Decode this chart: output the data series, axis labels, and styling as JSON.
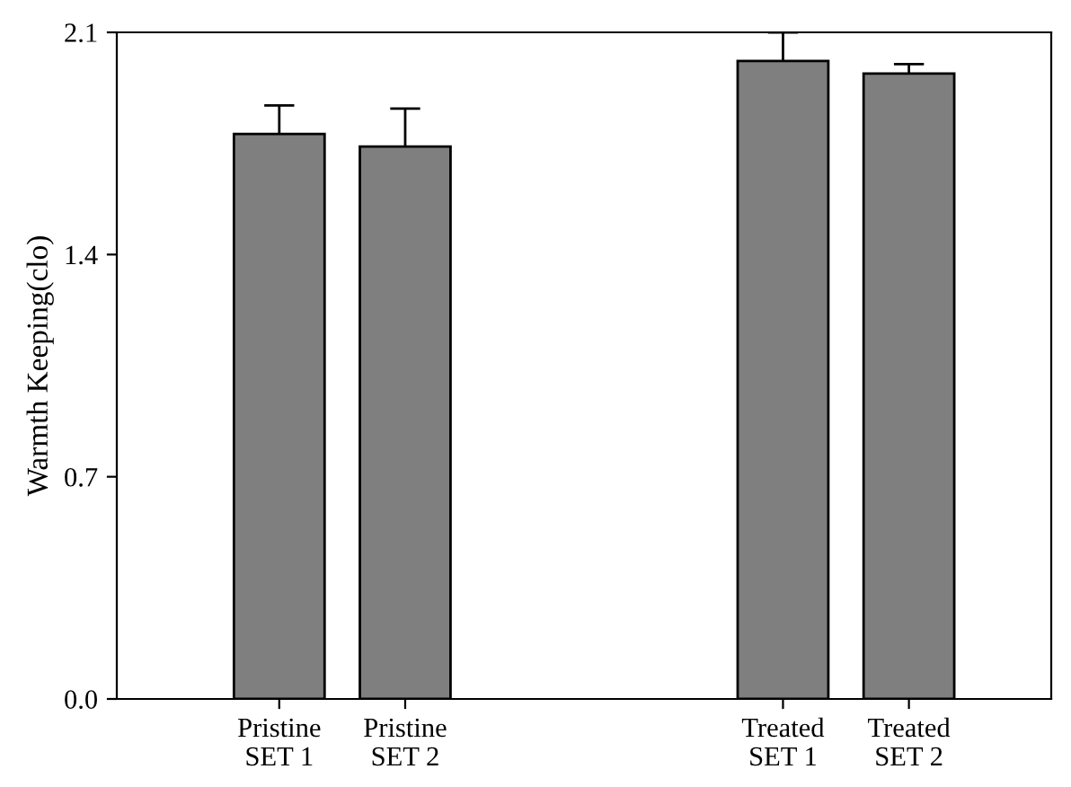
{
  "chart_data": {
    "type": "bar",
    "ylabel": "Warmth Keeping(clo)",
    "categories": [
      "Pristine\nSET 1",
      "Pristine\nSET 2",
      null,
      null,
      "Treated\nSET 1",
      "Treated\nSET 2"
    ],
    "values": [
      1.78,
      1.74,
      null,
      null,
      2.01,
      1.97
    ],
    "errors": [
      0.09,
      0.12,
      null,
      null,
      0.09,
      0.03
    ],
    "color": "#7f7f7f",
    "ylim": [
      0,
      2.1
    ],
    "yticks": [
      {
        "value": 0,
        "label": "0.0"
      },
      {
        "value": 0.7,
        "label": "0.7"
      },
      {
        "value": 1.4,
        "label": "1.4"
      },
      {
        "value": 2.1,
        "label": "2.1"
      }
    ],
    "grid": false
  }
}
